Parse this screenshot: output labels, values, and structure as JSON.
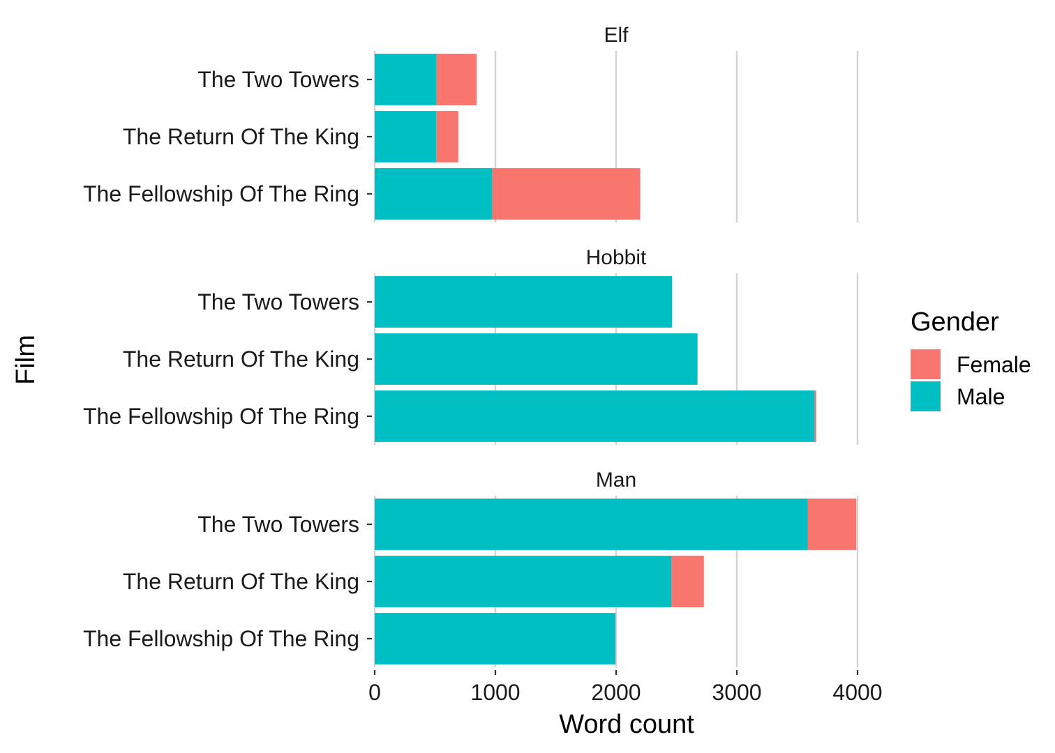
{
  "chart_data": {
    "type": "bar",
    "orientation": "horizontal",
    "stacked": true,
    "xlabel": "Word count",
    "ylabel": "Film",
    "xlim": [
      0,
      4000
    ],
    "x_ticks": [
      0,
      1000,
      2000,
      3000,
      4000
    ],
    "grid": "vertical",
    "legend": {
      "title": "Gender",
      "position": "right",
      "entries": [
        "Female",
        "Male"
      ]
    },
    "colors": {
      "Female": "#F8766D",
      "Male": "#00BFC4"
    },
    "categories": [
      "The Two Towers",
      "The Return Of The King",
      "The Fellowship Of The Ring"
    ],
    "panels": [
      {
        "title": "Elf",
        "series": [
          {
            "name": "Male",
            "values": [
              513,
              510,
              971
            ]
          },
          {
            "name": "Female",
            "values": [
              331,
              183,
              1229
            ]
          }
        ]
      },
      {
        "title": "Hobbit",
        "series": [
          {
            "name": "Male",
            "values": [
              2463,
              2673,
              3644
            ]
          },
          {
            "name": "Female",
            "values": [
              0,
              2,
              14
            ]
          }
        ]
      },
      {
        "title": "Man",
        "series": [
          {
            "name": "Male",
            "values": [
              3589,
              2459,
              1995
            ]
          },
          {
            "name": "Female",
            "values": [
              401,
              268,
              0
            ]
          }
        ]
      }
    ]
  }
}
